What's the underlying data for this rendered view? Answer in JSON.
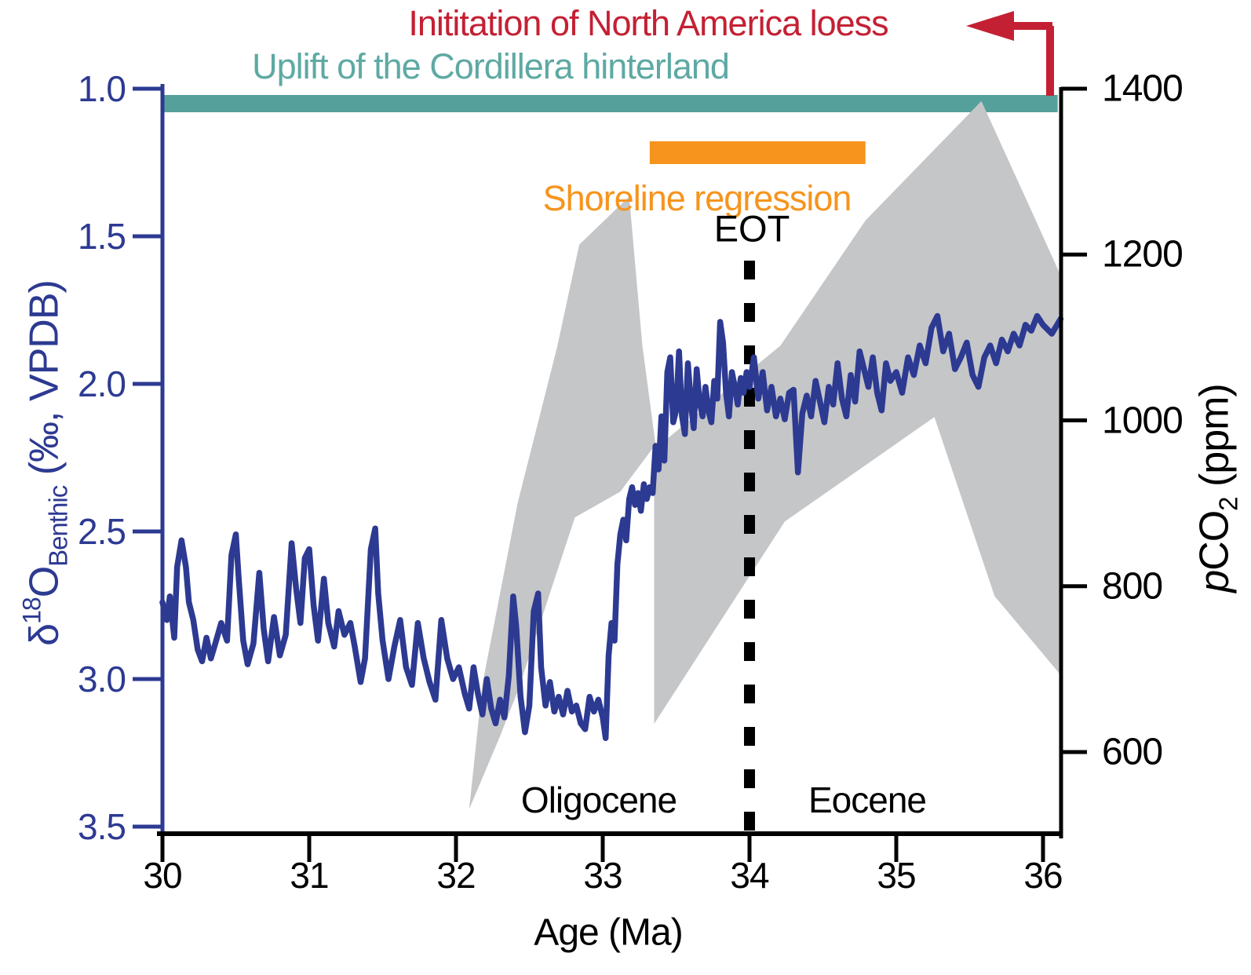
{
  "annotations": {
    "loess": "Inititation of North America loess",
    "uplift": "Uplift of the Cordillera hinterland",
    "shoreline": "Shoreline regression",
    "eot": "EOT",
    "oligocene": "Oligocene",
    "eocene": "Eocene"
  },
  "axes": {
    "x": {
      "label": "Age (Ma)",
      "tick_labels": [
        "30",
        "31",
        "32",
        "33",
        "34",
        "35",
        "36"
      ]
    },
    "left": {
      "delta": "δ",
      "sup": "18",
      "o": "O",
      "sub": "Benthic",
      "unit": " (‰, VPDB)",
      "tick_labels": [
        "1.0",
        "1.5",
        "2.0",
        "2.5",
        "3.0",
        "3.5"
      ]
    },
    "right": {
      "p": "p",
      "co": "CO",
      "sub": "2",
      "unit": " (ppm)",
      "tick_labels": [
        "1400",
        "1200",
        "1000",
        "800",
        "600"
      ]
    }
  },
  "colors": {
    "curve_blue": "#2d3a92",
    "axis_blue": "#2d3a92",
    "teal_bar": "#55a09b",
    "orange_bar": "#f7941d",
    "red_arrow": "#c42033",
    "gray_band": "#c5c6c8",
    "black": "#000000"
  },
  "chart_data": {
    "type": "line",
    "title": "",
    "xlabel": "Age (Ma)",
    "x_range": [
      30,
      36.12
    ],
    "x_ticks": [
      30,
      31,
      32,
      33,
      34,
      35,
      36
    ],
    "left_axis": {
      "label": "d18O Benthic (permil, VPDB)",
      "range": [
        1.0,
        3.5
      ],
      "inverted": true,
      "ticks": [
        1.0,
        1.5,
        2.0,
        2.5,
        3.0,
        3.5
      ]
    },
    "right_axis": {
      "label": "pCO2 (ppm)",
      "range": [
        600,
        1400
      ],
      "ticks": [
        1400,
        1200,
        1000,
        800,
        600
      ]
    },
    "eot_line_age": 34,
    "event_bars": [
      {
        "name": "uplift-cordillera",
        "age_start": 30.0,
        "age_end": 36.1,
        "color": "#55a09b"
      },
      {
        "name": "shoreline-regression",
        "age_start": 33.32,
        "age_end": 34.79,
        "color": "#f7941d"
      }
    ],
    "series": [
      {
        "name": "pCO2 uncertainty band",
        "axis": "right",
        "style": "polygon",
        "color": "#c5c6c8",
        "polygons": [
          [
            [
              32.09,
              531
            ],
            [
              32.18,
              682
            ],
            [
              32.42,
              900
            ],
            [
              32.69,
              1089
            ],
            [
              32.84,
              1212
            ],
            [
              33.18,
              1270
            ],
            [
              33.27,
              1090
            ],
            [
              33.36,
              971
            ],
            [
              33.12,
              914
            ],
            [
              32.81,
              883
            ],
            [
              32.42,
              673
            ],
            [
              32.3,
              619
            ]
          ],
          [
            [
              33.35,
              965
            ],
            [
              34.21,
              1090
            ],
            [
              34.79,
              1241
            ],
            [
              35.58,
              1385
            ],
            [
              35.91,
              1257
            ],
            [
              36.12,
              1175
            ],
            [
              36.12,
              693
            ],
            [
              35.67,
              788
            ],
            [
              35.26,
              1004
            ],
            [
              34.24,
              878
            ],
            [
              33.35,
              634
            ]
          ]
        ]
      },
      {
        "name": "d18O benthic",
        "axis": "left",
        "style": "line",
        "color": "#2d3a92",
        "points": [
          [
            30.0,
            2.74
          ],
          [
            30.03,
            2.8
          ],
          [
            30.05,
            2.72
          ],
          [
            30.08,
            2.86
          ],
          [
            30.1,
            2.62
          ],
          [
            30.13,
            2.53
          ],
          [
            30.16,
            2.62
          ],
          [
            30.18,
            2.74
          ],
          [
            30.21,
            2.8
          ],
          [
            30.24,
            2.9
          ],
          [
            30.27,
            2.94
          ],
          [
            30.3,
            2.86
          ],
          [
            30.33,
            2.93
          ],
          [
            30.36,
            2.88
          ],
          [
            30.4,
            2.81
          ],
          [
            30.44,
            2.87
          ],
          [
            30.47,
            2.58
          ],
          [
            30.5,
            2.51
          ],
          [
            30.52,
            2.66
          ],
          [
            30.55,
            2.87
          ],
          [
            30.58,
            2.95
          ],
          [
            30.62,
            2.88
          ],
          [
            30.66,
            2.64
          ],
          [
            30.69,
            2.83
          ],
          [
            30.72,
            2.94
          ],
          [
            30.76,
            2.79
          ],
          [
            30.8,
            2.92
          ],
          [
            30.84,
            2.85
          ],
          [
            30.88,
            2.54
          ],
          [
            30.91,
            2.69
          ],
          [
            30.94,
            2.81
          ],
          [
            30.97,
            2.59
          ],
          [
            31.0,
            2.56
          ],
          [
            31.03,
            2.75
          ],
          [
            31.06,
            2.87
          ],
          [
            31.1,
            2.66
          ],
          [
            31.13,
            2.81
          ],
          [
            31.17,
            2.89
          ],
          [
            31.2,
            2.77
          ],
          [
            31.24,
            2.85
          ],
          [
            31.28,
            2.81
          ],
          [
            31.31,
            2.89
          ],
          [
            31.35,
            3.01
          ],
          [
            31.38,
            2.93
          ],
          [
            31.42,
            2.56
          ],
          [
            31.45,
            2.49
          ],
          [
            31.47,
            2.71
          ],
          [
            31.5,
            2.87
          ],
          [
            31.54,
            3.0
          ],
          [
            31.58,
            2.89
          ],
          [
            31.62,
            2.8
          ],
          [
            31.66,
            2.96
          ],
          [
            31.7,
            3.02
          ],
          [
            31.74,
            2.81
          ],
          [
            31.78,
            2.93
          ],
          [
            31.82,
            3.01
          ],
          [
            31.86,
            3.07
          ],
          [
            31.9,
            2.8
          ],
          [
            31.94,
            2.93
          ],
          [
            31.98,
            3.0
          ],
          [
            32.02,
            2.96
          ],
          [
            32.06,
            3.05
          ],
          [
            32.09,
            3.1
          ],
          [
            32.12,
            2.96
          ],
          [
            32.15,
            3.05
          ],
          [
            32.18,
            3.12
          ],
          [
            32.21,
            3.0
          ],
          [
            32.24,
            3.1
          ],
          [
            32.27,
            3.15
          ],
          [
            32.3,
            3.07
          ],
          [
            32.33,
            3.13
          ],
          [
            32.36,
            2.99
          ],
          [
            32.39,
            2.72
          ],
          [
            32.41,
            2.82
          ],
          [
            32.44,
            3.06
          ],
          [
            32.47,
            3.18
          ],
          [
            32.5,
            3.09
          ],
          [
            32.53,
            2.77
          ],
          [
            32.56,
            2.71
          ],
          [
            32.58,
            2.96
          ],
          [
            32.61,
            3.09
          ],
          [
            32.64,
            3.01
          ],
          [
            32.67,
            3.11
          ],
          [
            32.7,
            3.06
          ],
          [
            32.73,
            3.12
          ],
          [
            32.76,
            3.04
          ],
          [
            32.79,
            3.11
          ],
          [
            32.82,
            3.09
          ],
          [
            32.85,
            3.15
          ],
          [
            32.88,
            3.17
          ],
          [
            32.91,
            3.06
          ],
          [
            32.94,
            3.11
          ],
          [
            32.97,
            3.07
          ],
          [
            33.0,
            3.13
          ],
          [
            33.02,
            3.2
          ],
          [
            33.04,
            2.92
          ],
          [
            33.06,
            2.81
          ],
          [
            33.08,
            2.87
          ],
          [
            33.1,
            2.61
          ],
          [
            33.12,
            2.51
          ],
          [
            33.14,
            2.46
          ],
          [
            33.16,
            2.53
          ],
          [
            33.18,
            2.39
          ],
          [
            33.2,
            2.35
          ],
          [
            33.22,
            2.41
          ],
          [
            33.24,
            2.37
          ],
          [
            33.26,
            2.43
          ],
          [
            33.28,
            2.34
          ],
          [
            33.3,
            2.39
          ],
          [
            33.32,
            2.35
          ],
          [
            33.34,
            2.37
          ],
          [
            33.36,
            2.21
          ],
          [
            33.38,
            2.29
          ],
          [
            33.4,
            2.11
          ],
          [
            33.42,
            2.26
          ],
          [
            33.44,
            1.96
          ],
          [
            33.46,
            1.91
          ],
          [
            33.48,
            2.13
          ],
          [
            33.5,
            2.09
          ],
          [
            33.52,
            1.89
          ],
          [
            33.54,
            2.11
          ],
          [
            33.56,
            2.17
          ],
          [
            33.58,
            1.93
          ],
          [
            33.6,
            2.06
          ],
          [
            33.62,
            2.15
          ],
          [
            33.64,
            1.95
          ],
          [
            33.66,
            2.06
          ],
          [
            33.68,
            2.11
          ],
          [
            33.7,
            2.01
          ],
          [
            33.72,
            2.09
          ],
          [
            33.74,
            2.13
          ],
          [
            33.76,
            1.99
          ],
          [
            33.78,
            2.05
          ],
          [
            33.8,
            1.79
          ],
          [
            33.82,
            1.86
          ],
          [
            33.84,
            2.03
          ],
          [
            33.86,
            2.11
          ],
          [
            33.88,
            1.96
          ],
          [
            33.9,
            2.01
          ],
          [
            33.92,
            2.07
          ],
          [
            33.94,
            1.98
          ],
          [
            33.96,
            2.03
          ],
          [
            33.98,
            1.96
          ],
          [
            34.0,
            2.01
          ],
          [
            34.03,
            1.91
          ],
          [
            34.06,
            2.05
          ],
          [
            34.09,
            1.96
          ],
          [
            34.12,
            2.09
          ],
          [
            34.15,
            2.01
          ],
          [
            34.18,
            2.11
          ],
          [
            34.21,
            2.05
          ],
          [
            34.24,
            2.12
          ],
          [
            34.27,
            2.03
          ],
          [
            34.3,
            2.02
          ],
          [
            34.33,
            2.3
          ],
          [
            34.36,
            2.1
          ],
          [
            34.39,
            2.04
          ],
          [
            34.42,
            2.11
          ],
          [
            34.45,
            1.99
          ],
          [
            34.48,
            2.06
          ],
          [
            34.51,
            2.13
          ],
          [
            34.54,
            2.01
          ],
          [
            34.57,
            2.07
          ],
          [
            34.6,
            1.93
          ],
          [
            34.63,
            2.05
          ],
          [
            34.66,
            2.11
          ],
          [
            34.69,
            1.97
          ],
          [
            34.72,
            2.06
          ],
          [
            34.75,
            1.89
          ],
          [
            34.78,
            1.95
          ],
          [
            34.81,
            2.01
          ],
          [
            34.84,
            1.91
          ],
          [
            34.87,
            2.03
          ],
          [
            34.9,
            2.09
          ],
          [
            34.93,
            1.93
          ],
          [
            34.96,
            1.99
          ],
          [
            35.0,
            1.96
          ],
          [
            35.04,
            2.03
          ],
          [
            35.08,
            1.91
          ],
          [
            35.12,
            1.97
          ],
          [
            35.16,
            1.87
          ],
          [
            35.2,
            1.93
          ],
          [
            35.24,
            1.81
          ],
          [
            35.28,
            1.77
          ],
          [
            35.32,
            1.89
          ],
          [
            35.36,
            1.83
          ],
          [
            35.4,
            1.95
          ],
          [
            35.44,
            1.91
          ],
          [
            35.48,
            1.86
          ],
          [
            35.52,
            1.97
          ],
          [
            35.56,
            2.01
          ],
          [
            35.6,
            1.91
          ],
          [
            35.64,
            1.87
          ],
          [
            35.68,
            1.93
          ],
          [
            35.72,
            1.85
          ],
          [
            35.76,
            1.89
          ],
          [
            35.8,
            1.83
          ],
          [
            35.84,
            1.87
          ],
          [
            35.88,
            1.8
          ],
          [
            35.92,
            1.82
          ],
          [
            35.96,
            1.77
          ],
          [
            36.0,
            1.8
          ],
          [
            36.06,
            1.83
          ],
          [
            36.12,
            1.78
          ]
        ]
      }
    ]
  }
}
